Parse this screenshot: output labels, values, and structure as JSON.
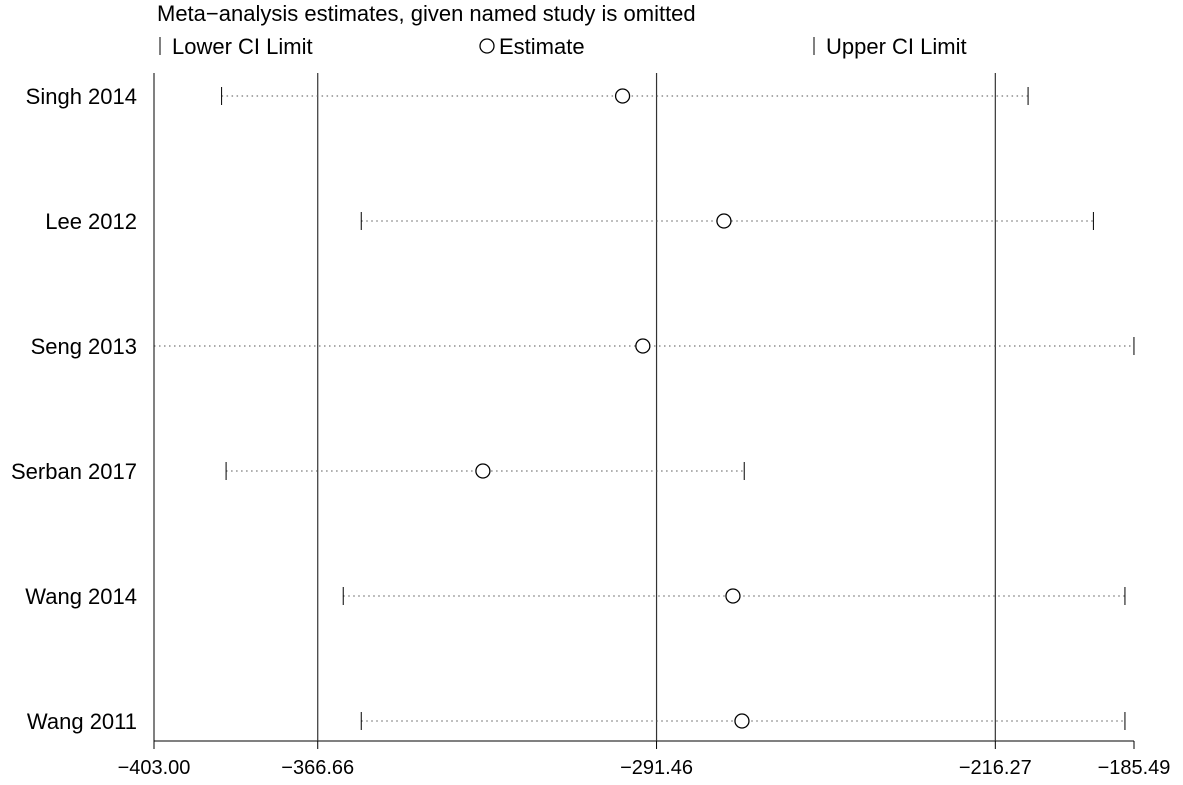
{
  "chart_data": {
    "type": "forest",
    "title": "Meta−analysis estimates, given named study is omitted",
    "legend": {
      "lower": "Lower CI Limit",
      "estimate": "Estimate",
      "upper": "Upper CI Limit"
    },
    "xlim": [
      -403.0,
      -185.49
    ],
    "xticks": [
      -403.0,
      -366.66,
      -291.46,
      -216.27,
      -185.49
    ],
    "xtick_labels": [
      "−403.00",
      "−366.66",
      "−291.46",
      "−216.27",
      "−185.49"
    ],
    "reference_lines": [
      -366.66,
      -291.46,
      -216.27
    ],
    "studies": [
      {
        "name": "Singh 2014",
        "lower": -388.0,
        "estimate": -299.0,
        "upper": -209.0
      },
      {
        "name": "Lee 2012",
        "lower": -357.0,
        "estimate": -276.5,
        "upper": -194.5
      },
      {
        "name": "Seng 2013",
        "lower": -403.0,
        "estimate": -294.5,
        "upper": -185.5
      },
      {
        "name": "Serban 2017",
        "lower": -387.0,
        "estimate": -330.0,
        "upper": -272.0
      },
      {
        "name": "Wang 2014",
        "lower": -361.0,
        "estimate": -274.5,
        "upper": -187.5
      },
      {
        "name": "Wang 2011",
        "lower": -357.0,
        "estimate": -272.5,
        "upper": -187.5
      }
    ]
  }
}
